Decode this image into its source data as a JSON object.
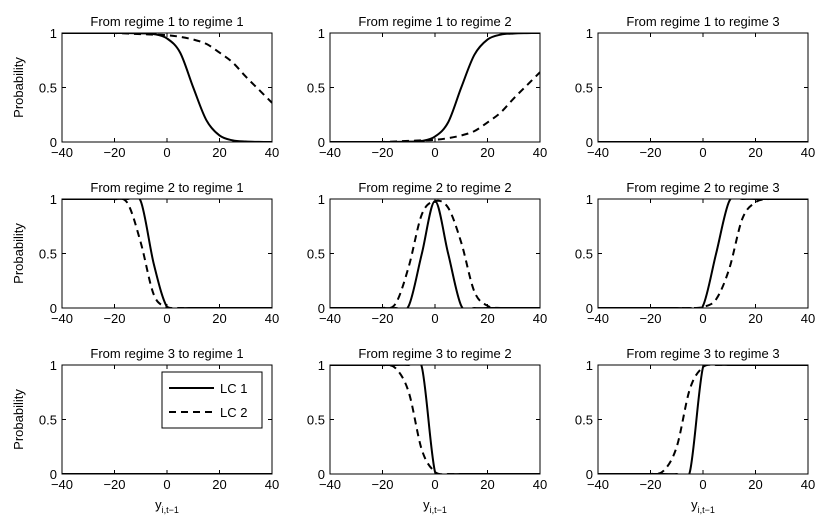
{
  "chart_data": {
    "type": "line",
    "layout": "3x3 grid of subplots",
    "ylabel": "Probability",
    "xlabel_base": "y",
    "xlabel_sub": "i,t−1",
    "xlim": [
      -40,
      40
    ],
    "ylim": [
      0,
      1
    ],
    "x_ticks": [
      "−40",
      "−20",
      "0",
      "20",
      "40"
    ],
    "y_ticks": [
      "0",
      "0.5",
      "1"
    ],
    "grid": false,
    "legend": {
      "location": "bottom-left panel, top-right",
      "entries": [
        {
          "label": "LC 1",
          "style": "solid"
        },
        {
          "label": "LC 2",
          "style": "dashed"
        }
      ]
    },
    "x": [
      -40,
      -35,
      -30,
      -25,
      -20,
      -15,
      -10,
      -5,
      0,
      5,
      10,
      15,
      20,
      25,
      30,
      35,
      40
    ],
    "panels": [
      {
        "title": "From regime 1 to regime 1",
        "series": [
          {
            "name": "LC 1",
            "values": [
              1,
              1,
              1,
              1,
              1,
              0.999,
              0.997,
              0.99,
              0.95,
              0.82,
              0.5,
              0.2,
              0.06,
              0.015,
              0.004,
              0.001,
              0
            ]
          },
          {
            "name": "LC 2",
            "values": [
              1,
              1,
              1,
              1,
              1,
              0.995,
              0.99,
              0.985,
              0.98,
              0.965,
              0.94,
              0.9,
              0.82,
              0.73,
              0.6,
              0.48,
              0.36
            ]
          }
        ]
      },
      {
        "title": "From regime 1 to regime 2",
        "series": [
          {
            "name": "LC 1",
            "values": [
              0,
              0,
              0,
              0,
              0,
              0.001,
              0.003,
              0.01,
              0.05,
              0.18,
              0.5,
              0.8,
              0.94,
              0.985,
              0.996,
              0.999,
              1
            ]
          },
          {
            "name": "LC 2",
            "values": [
              0,
              0,
              0,
              0,
              0,
              0.005,
              0.01,
              0.015,
              0.02,
              0.035,
              0.06,
              0.1,
              0.18,
              0.27,
              0.4,
              0.52,
              0.64
            ]
          }
        ]
      },
      {
        "title": "From regime 1 to regime 3",
        "series": [
          {
            "name": "LC 1",
            "values": [
              0,
              0,
              0,
              0,
              0,
              0,
              0,
              0,
              0,
              0,
              0,
              0,
              0,
              0,
              0,
              0,
              0
            ]
          },
          {
            "name": "LC 2",
            "values": [
              0,
              0,
              0,
              0,
              0,
              0,
              0,
              0,
              0,
              0,
              0,
              0,
              0,
              0,
              0,
              0,
              0
            ]
          }
        ]
      },
      {
        "title": "From regime 2 to regime 1",
        "series": [
          {
            "name": "LC 1",
            "values": [
              1,
              1,
              1,
              1,
              1,
              1,
              0.98,
              0.4,
              0.01,
              0,
              0,
              0,
              0,
              0,
              0,
              0,
              0
            ]
          },
          {
            "name": "LC 2",
            "values": [
              1,
              1,
              1,
              1,
              1,
              0.96,
              0.6,
              0.12,
              0.01,
              0,
              0,
              0,
              0,
              0,
              0,
              0,
              0
            ]
          }
        ]
      },
      {
        "title": "From regime 2 to regime 2",
        "series": [
          {
            "name": "LC 1",
            "values": [
              0,
              0,
              0,
              0,
              0,
              0,
              0.02,
              0.5,
              0.98,
              0.5,
              0.02,
              0,
              0,
              0,
              0,
              0,
              0
            ]
          },
          {
            "name": "LC 2",
            "values": [
              0,
              0,
              0,
              0,
              0,
              0.04,
              0.38,
              0.86,
              0.98,
              0.92,
              0.6,
              0.15,
              0.02,
              0,
              0,
              0,
              0
            ]
          }
        ]
      },
      {
        "title": "From regime 2 to regime 3",
        "series": [
          {
            "name": "LC 1",
            "values": [
              0,
              0,
              0,
              0,
              0,
              0,
              0,
              0,
              0.02,
              0.5,
              0.98,
              1,
              1,
              1,
              1,
              1,
              1
            ]
          },
          {
            "name": "LC 2",
            "values": [
              0,
              0,
              0,
              0,
              0,
              0,
              0,
              0,
              0.01,
              0.08,
              0.36,
              0.82,
              0.97,
              1,
              1,
              1,
              1
            ]
          }
        ]
      },
      {
        "title": "From regime 3 to regime 1",
        "series": [
          {
            "name": "LC 1",
            "values": [
              0,
              0,
              0,
              0,
              0,
              0,
              0,
              0,
              0,
              0,
              0,
              0,
              0,
              0,
              0,
              0,
              0
            ]
          },
          {
            "name": "LC 2",
            "values": [
              0,
              0,
              0,
              0,
              0,
              0,
              0,
              0,
              0,
              0,
              0,
              0,
              0,
              0,
              0,
              0,
              0
            ]
          }
        ]
      },
      {
        "title": "From regime 3 to regime 2",
        "series": [
          {
            "name": "LC 1",
            "values": [
              1,
              1,
              1,
              1,
              1,
              1,
              1,
              0.98,
              0.02,
              0,
              0,
              0,
              0,
              0,
              0,
              0,
              0
            ]
          },
          {
            "name": "LC 2",
            "values": [
              1,
              1,
              1,
              1,
              1,
              0.97,
              0.75,
              0.22,
              0.02,
              0,
              0,
              0,
              0,
              0,
              0,
              0,
              0
            ]
          }
        ]
      },
      {
        "title": "From regime 3 to regime 3",
        "series": [
          {
            "name": "LC 1",
            "values": [
              0,
              0,
              0,
              0,
              0,
              0,
              0,
              0.02,
              0.98,
              1,
              1,
              1,
              1,
              1,
              1,
              1,
              1
            ]
          },
          {
            "name": "LC 2",
            "values": [
              0,
              0,
              0,
              0,
              0,
              0.03,
              0.25,
              0.78,
              0.98,
              1,
              1,
              1,
              1,
              1,
              1,
              1,
              1
            ]
          }
        ]
      }
    ]
  }
}
